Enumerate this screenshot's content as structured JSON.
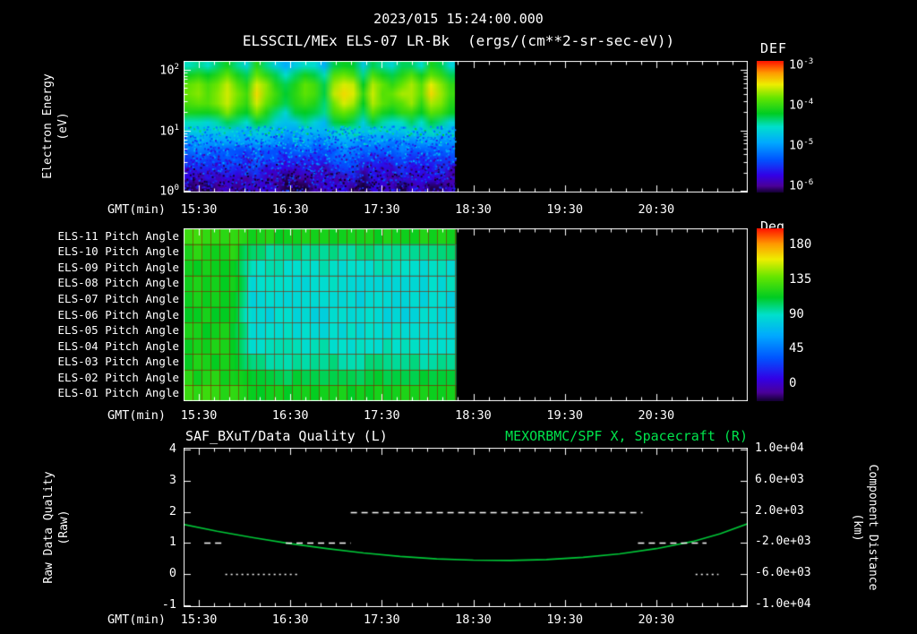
{
  "header": {
    "timestamp": "2023/015 15:24:00.000",
    "instrument_title": "ELSSCIL/MEx ELS-07 LR-Bk",
    "units_label": "(ergs/(cm**2-sr-sec-eV))"
  },
  "colors": {
    "background": "#000000",
    "text": "#ffffff",
    "accent_green": "#00e44c",
    "curve_green": "#00c838",
    "grid_red": "rgba(140,35,0,0.6)"
  },
  "colormap": {
    "stops": [
      [
        0.0,
        "#12002f"
      ],
      [
        0.05,
        "#4b0099"
      ],
      [
        0.13,
        "#3300e6"
      ],
      [
        0.25,
        "#0055ff"
      ],
      [
        0.38,
        "#00aaff"
      ],
      [
        0.5,
        "#00e0cc"
      ],
      [
        0.6,
        "#00cc22"
      ],
      [
        0.72,
        "#66e600"
      ],
      [
        0.82,
        "#eeee00"
      ],
      [
        0.91,
        "#ff9900"
      ],
      [
        1.0,
        "#ff1100"
      ]
    ]
  },
  "time_axis": {
    "label": "GMT(min)",
    "start": 15.3333,
    "end": 21.5,
    "minor_step": 0.1666667,
    "ticks": [
      {
        "t": 15.5,
        "label": "15:30"
      },
      {
        "t": 16.5,
        "label": "16:30"
      },
      {
        "t": 17.5,
        "label": "17:30"
      },
      {
        "t": 18.5,
        "label": "18:30"
      },
      {
        "t": 19.5,
        "label": "19:30"
      },
      {
        "t": 20.5,
        "label": "20:30"
      }
    ]
  },
  "spectrogram_panel": {
    "ylabel": [
      "Electron Energy",
      "(eV)"
    ],
    "ytick_exponents": [
      "2",
      "1",
      "0"
    ],
    "colorbar_title": "DEF",
    "colorbar_tick_exponents": [
      "-3",
      "-4",
      "-5",
      "-6"
    ]
  },
  "pitch_panel": {
    "row_labels": [
      "ELS-11 Pitch Angle",
      "ELS-10 Pitch Angle",
      "ELS-09 Pitch Angle",
      "ELS-08 Pitch Angle",
      "ELS-07 Pitch Angle",
      "ELS-06 Pitch Angle",
      "ELS-05 Pitch Angle",
      "ELS-04 Pitch Angle",
      "ELS-03 Pitch Angle",
      "ELS-02 Pitch Angle",
      "ELS-01 Pitch Angle"
    ],
    "colorbar_title": "Deg",
    "colorbar_ticks": [
      "180",
      "135",
      "90",
      "45",
      "0"
    ]
  },
  "quality_panel": {
    "title_left": "SAF_BXuT/Data Quality (L)",
    "title_right": "MEXORBMC/SPF X, Spacecraft (R)",
    "ylabel_left": [
      "Raw Data Quality",
      "(Raw)"
    ],
    "ylabel_right": [
      "Component Distance",
      "(km)"
    ],
    "yticks_left": [
      "4",
      "3",
      "2",
      "1",
      "0",
      "-1"
    ],
    "yticks_right": [
      "1.0e+04",
      "6.0e+03",
      "2.0e+03",
      "-2.0e+03",
      "-6.0e+03",
      "-1.0e+04"
    ]
  },
  "chart_data": [
    {
      "type": "heatmap",
      "name": "electron-energy-spectrogram",
      "title": "ELSSCIL/MEx ELS-07 LR-Bk",
      "value_units": "ergs/(cm**2-sr-sec-eV)",
      "xlabel": "GMT(min)",
      "ylabel": "Electron Energy (eV)",
      "x_range_hours": [
        15.3333,
        21.5
      ],
      "data_end_hour": 18.3,
      "y_scale": "log",
      "y_range_ev": [
        1,
        150
      ],
      "flux_range": [
        "1e-6",
        "1e-3"
      ],
      "grid": {
        "row_base": [
          0.5,
          0.6,
          0.68,
          0.7,
          0.67,
          0.6,
          0.5,
          0.42,
          0.34,
          0.27,
          0.21,
          0.15,
          0.1,
          0.06
        ],
        "col_mod": [
          0.02,
          0.05,
          0.0,
          0.06,
          0.12,
          0.03,
          -0.02,
          0.13,
          0.06,
          -0.03,
          -0.12,
          -0.05,
          0.02,
          -0.02,
          -0.1,
          0.08,
          0.13,
          0.1,
          -0.06,
          0.09,
          0.02,
          -0.01,
          0.05,
          0.08,
          0.0,
          0.12,
          0.06,
          -0.02
        ],
        "row_streak_weight": [
          1,
          1,
          1,
          1,
          1,
          0.9,
          0.7,
          0.5,
          0.4,
          0.3,
          0.3,
          0.25,
          0.2,
          0.15
        ],
        "noise_amp": [
          0.04,
          0.04,
          0.04,
          0.05,
          0.05,
          0.06,
          0.06,
          0.07,
          0.08,
          0.1,
          0.12,
          0.14,
          0.15,
          0.15
        ]
      }
    },
    {
      "type": "heatmap",
      "name": "pitch-angle-panels",
      "title": "ELS-01..ELS-11 Pitch Angle",
      "xlabel": "GMT(min)",
      "value_units": "Deg",
      "value_range": [
        0,
        180
      ],
      "x_range_hours": [
        15.3333,
        21.5
      ],
      "data_end_hour": 18.3,
      "transition_hours": [
        15.88,
        16.08
      ],
      "rows": [
        {
          "label": "ELS-11",
          "early_deg": 118,
          "late_deg": 112
        },
        {
          "label": "ELS-10",
          "early_deg": 114,
          "late_deg": 97
        },
        {
          "label": "ELS-09",
          "early_deg": 112,
          "late_deg": 90
        },
        {
          "label": "ELS-08",
          "early_deg": 111,
          "late_deg": 88
        },
        {
          "label": "ELS-07",
          "early_deg": 110,
          "late_deg": 86
        },
        {
          "label": "ELS-06",
          "early_deg": 110,
          "late_deg": 86
        },
        {
          "label": "ELS-05",
          "early_deg": 110,
          "late_deg": 88
        },
        {
          "label": "ELS-04",
          "early_deg": 111,
          "late_deg": 91
        },
        {
          "label": "ELS-03",
          "early_deg": 112,
          "late_deg": 96
        },
        {
          "label": "ELS-02",
          "early_deg": 114,
          "late_deg": 104
        },
        {
          "label": "ELS-01",
          "early_deg": 117,
          "late_deg": 111
        }
      ]
    },
    {
      "type": "line",
      "name": "quality-and-orbit",
      "title_left": "SAF_BXuT/Data Quality (L)",
      "title_right": "MEXORBMC/SPF X, Spacecraft (R)",
      "xlabel": "GMT(min)",
      "ylabel_left": "Raw Data Quality (Raw)",
      "ylabel_right": "Component Distance (km)",
      "ylim_left": [
        -1,
        4
      ],
      "ylim_right": [
        -10000,
        10000
      ],
      "x_range_hours": [
        15.3333,
        21.5
      ],
      "series": [
        {
          "name": "MEXORBMC/SPF X, Spacecraft",
          "axis": "right",
          "color": "#00c838",
          "x_hours": [
            15.33,
            15.7,
            16.1,
            16.5,
            16.9,
            17.3,
            17.7,
            18.1,
            18.5,
            18.9,
            19.3,
            19.7,
            20.1,
            20.5,
            20.9,
            21.2,
            21.5
          ],
          "km": [
            400,
            -480,
            -1320,
            -2080,
            -2720,
            -3280,
            -3720,
            -4040,
            -4200,
            -4240,
            -4120,
            -3840,
            -3400,
            -2720,
            -1800,
            -800,
            480
          ]
        },
        {
          "name": "SAF_BXuT/Data Quality",
          "axis": "left",
          "color": "#ffffff",
          "style": "dashed",
          "steps": [
            {
              "level": 1,
              "t1": 15.56,
              "t2": 15.79,
              "dash": "dash"
            },
            {
              "level": 0,
              "t1": 15.79,
              "t2": 16.58,
              "dash": "dot"
            },
            {
              "level": 1,
              "t1": 16.45,
              "t2": 17.16,
              "dash": "dash"
            },
            {
              "level": 2,
              "t1": 17.16,
              "t2": 20.35,
              "dash": "dash"
            },
            {
              "level": 1,
              "t1": 20.3,
              "t2": 21.05,
              "dash": "dash"
            },
            {
              "level": 0,
              "t1": 20.93,
              "t2": 21.18,
              "dash": "dot"
            }
          ]
        }
      ]
    }
  ]
}
